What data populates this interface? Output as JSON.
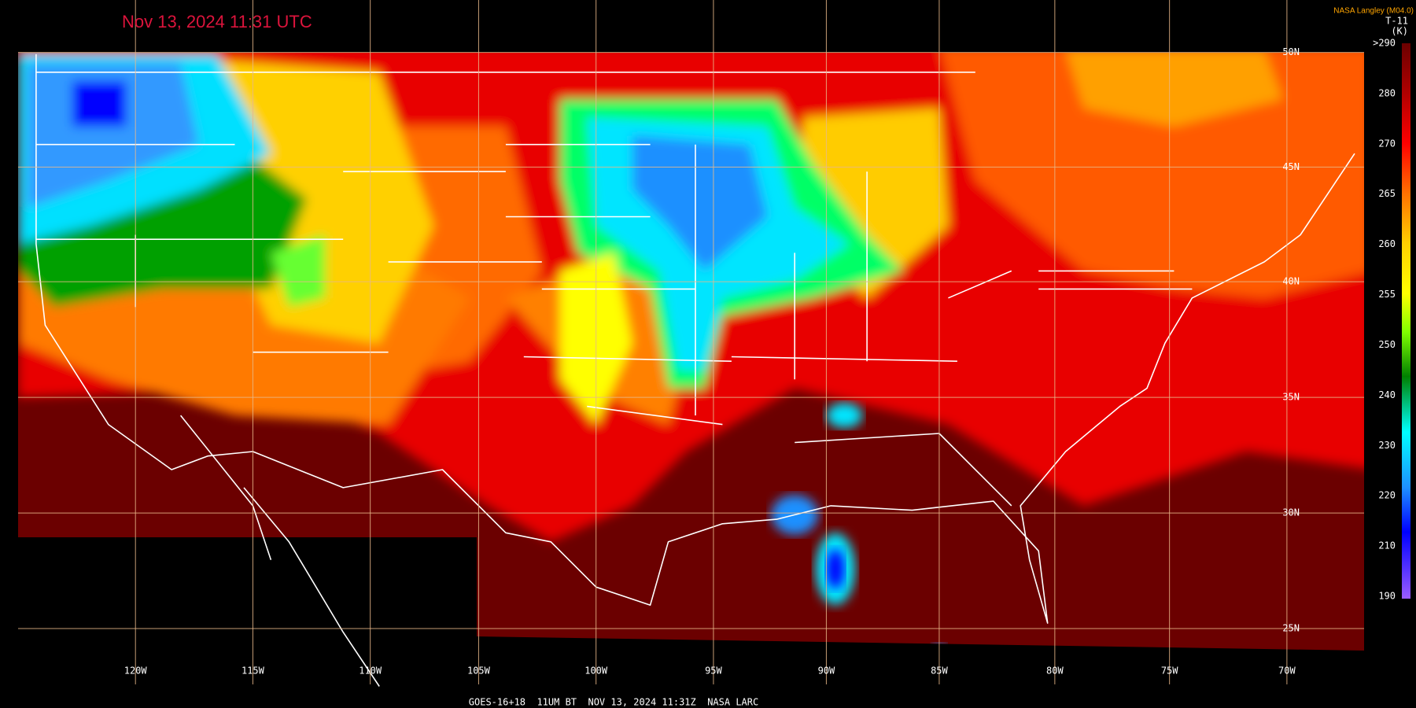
{
  "title": "Nov 13, 2024 11:31 UTC",
  "credit": "NASA Langley (M04.0)",
  "colorbar": {
    "title": "T-11",
    "units": "(K)",
    "labels": [
      ">290",
      "280",
      "270",
      "265",
      "260",
      "255",
      "250",
      "240",
      "230",
      "220",
      "210",
      "190"
    ]
  },
  "longitude_labels": [
    "120W",
    "115W",
    "110W",
    "105W",
    "100W",
    "95W",
    "90W",
    "85W",
    "80W",
    "75W",
    "70W"
  ],
  "latitude_labels": [
    "50N",
    "45N",
    "40N",
    "35N",
    "30N",
    "25N"
  ],
  "footer": "GOES-16+18  11UM BT  NOV 13, 2024 11:31Z  NASA LARC"
}
